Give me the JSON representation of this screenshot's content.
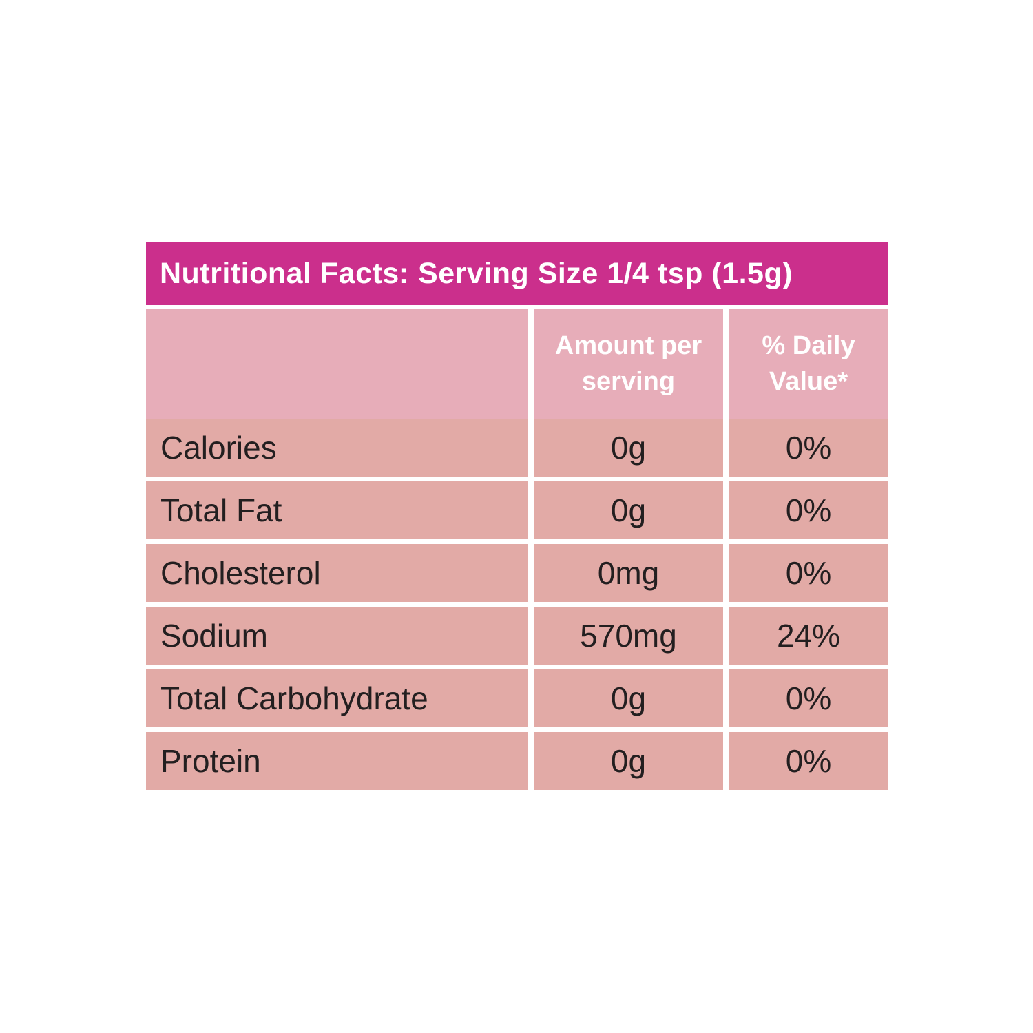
{
  "label": {
    "title": "Nutritional Facts: Serving Size 1/4 tsp (1.5g)",
    "columns": {
      "nutrient": "",
      "amount": "Amount per serving",
      "daily_value": "% Daily Value*"
    },
    "rows": [
      {
        "name": "Calories",
        "amount": "0g",
        "dv": "0%"
      },
      {
        "name": "Total Fat",
        "amount": "0g",
        "dv": "0%"
      },
      {
        "name": "Cholesterol",
        "amount": "0mg",
        "dv": "0%"
      },
      {
        "name": "Sodium",
        "amount": "570mg",
        "dv": "24%"
      },
      {
        "name": "Total Carbohydrate",
        "amount": "0g",
        "dv": "0%"
      },
      {
        "name": "Protein",
        "amount": "0g",
        "dv": "0%"
      }
    ],
    "colors": {
      "header_bg": "#cb2f8c",
      "colheader_bg": "#e7adb9",
      "row_bg": "#e2aaa6",
      "header_text": "#ffffff",
      "row_text": "#231f20",
      "page_bg": "#ffffff"
    }
  }
}
